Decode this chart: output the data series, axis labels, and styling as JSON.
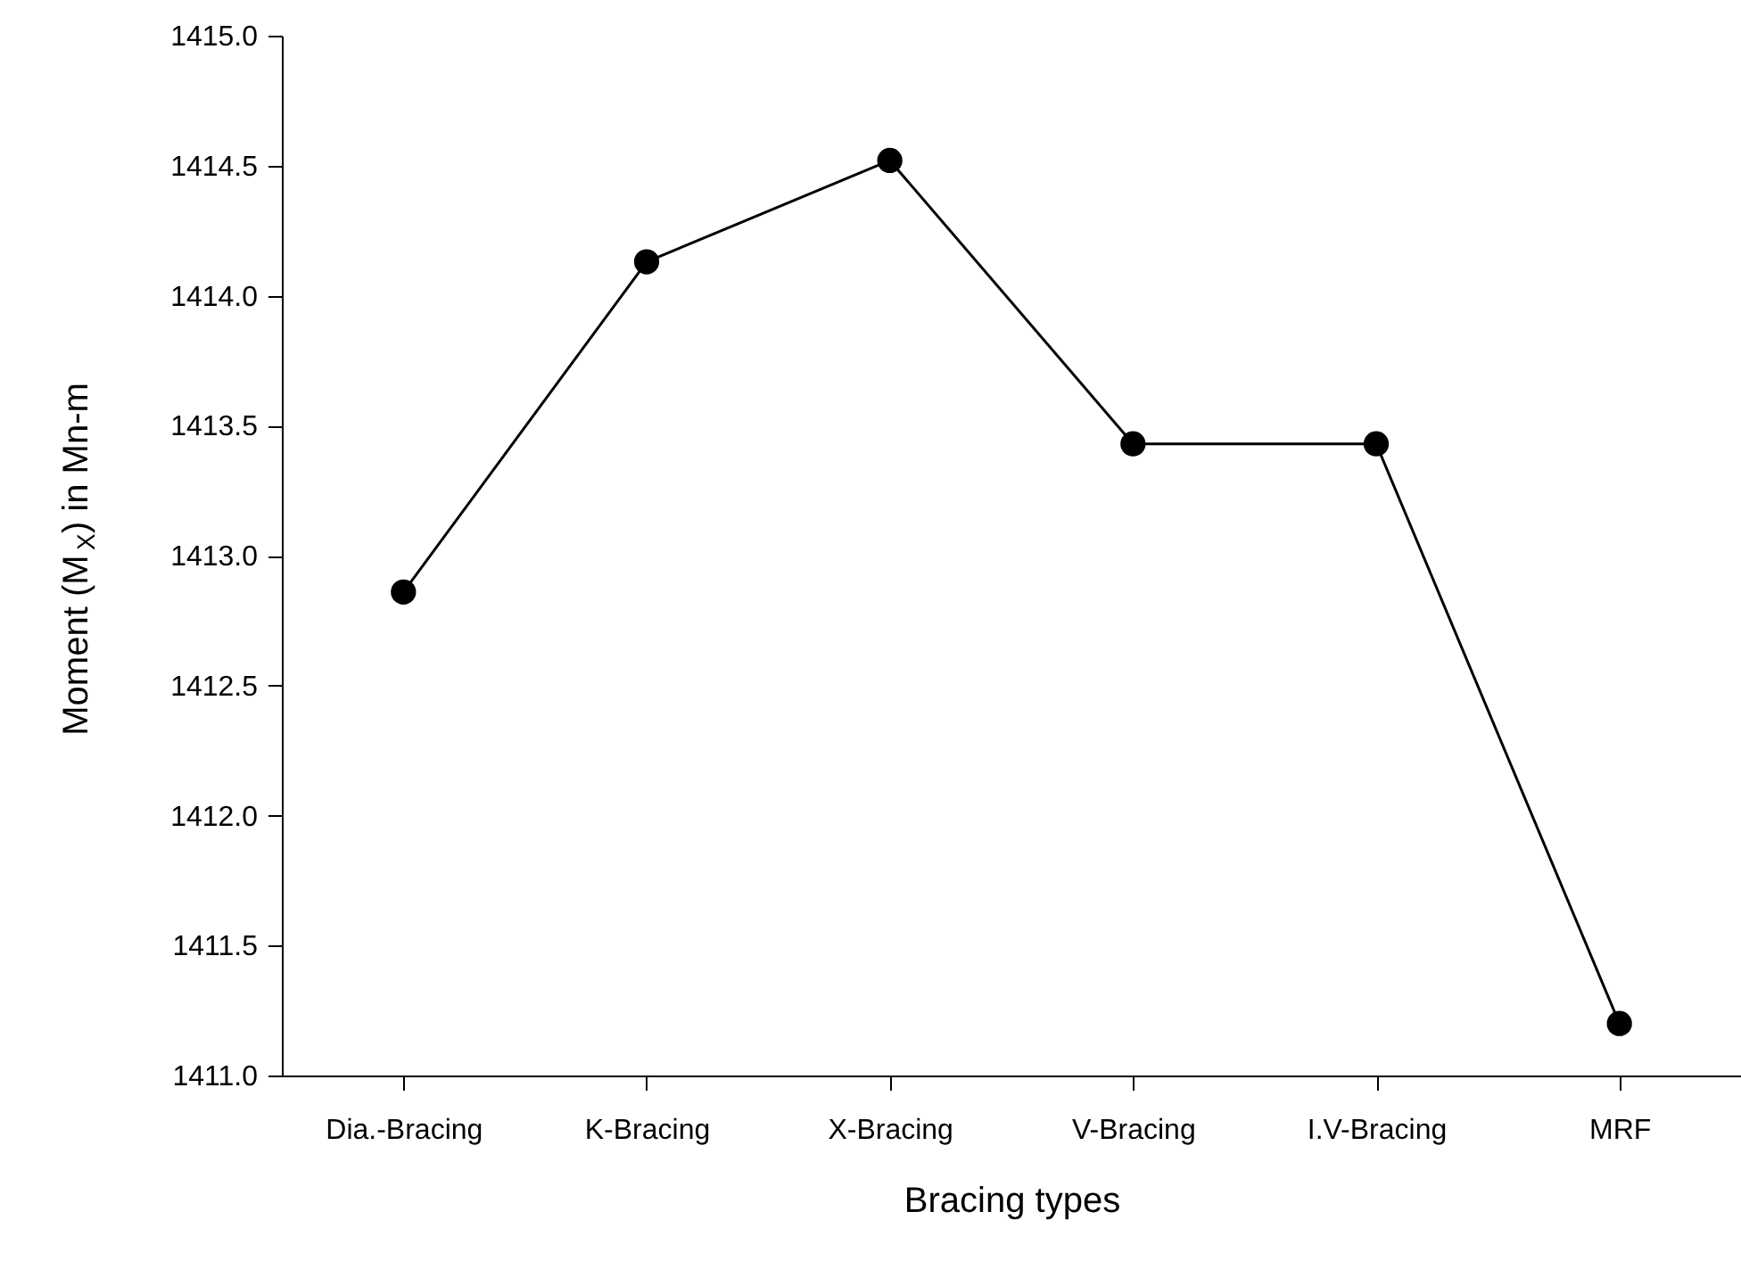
{
  "chart_data": {
    "type": "line",
    "xlabel": "Bracing types",
    "ylabel": "Moment (M$_{X}$) in Mn-m",
    "categories": [
      "Dia.-Bracing",
      "K-Bracing",
      "X-Bracing",
      "V-Bracing",
      "I.V-Bracing",
      "MRF"
    ],
    "series": [
      {
        "color": "#000000",
        "values": [
          1412.86,
          1414.13,
          1414.52,
          1413.43,
          1413.43,
          1411.2
        ]
      }
    ],
    "ylim": [
      1411.0,
      1415.0
    ],
    "yticks": [
      {
        "value": 1411.0,
        "label": "1411.0"
      },
      {
        "value": 1411.5,
        "label": "1411.5"
      },
      {
        "value": 1412.0,
        "label": "1412.0"
      },
      {
        "value": 1412.5,
        "label": "1412.5"
      },
      {
        "value": 1413.0,
        "label": "1413.0"
      },
      {
        "value": 1413.5,
        "label": "1413.5"
      },
      {
        "value": 1414.0,
        "label": "1414.0"
      },
      {
        "value": 1414.5,
        "label": "1414.5"
      },
      {
        "value": 1415.0,
        "label": "1415.0"
      }
    ],
    "grid": false,
    "marker": "circle",
    "line_style": "solid"
  }
}
